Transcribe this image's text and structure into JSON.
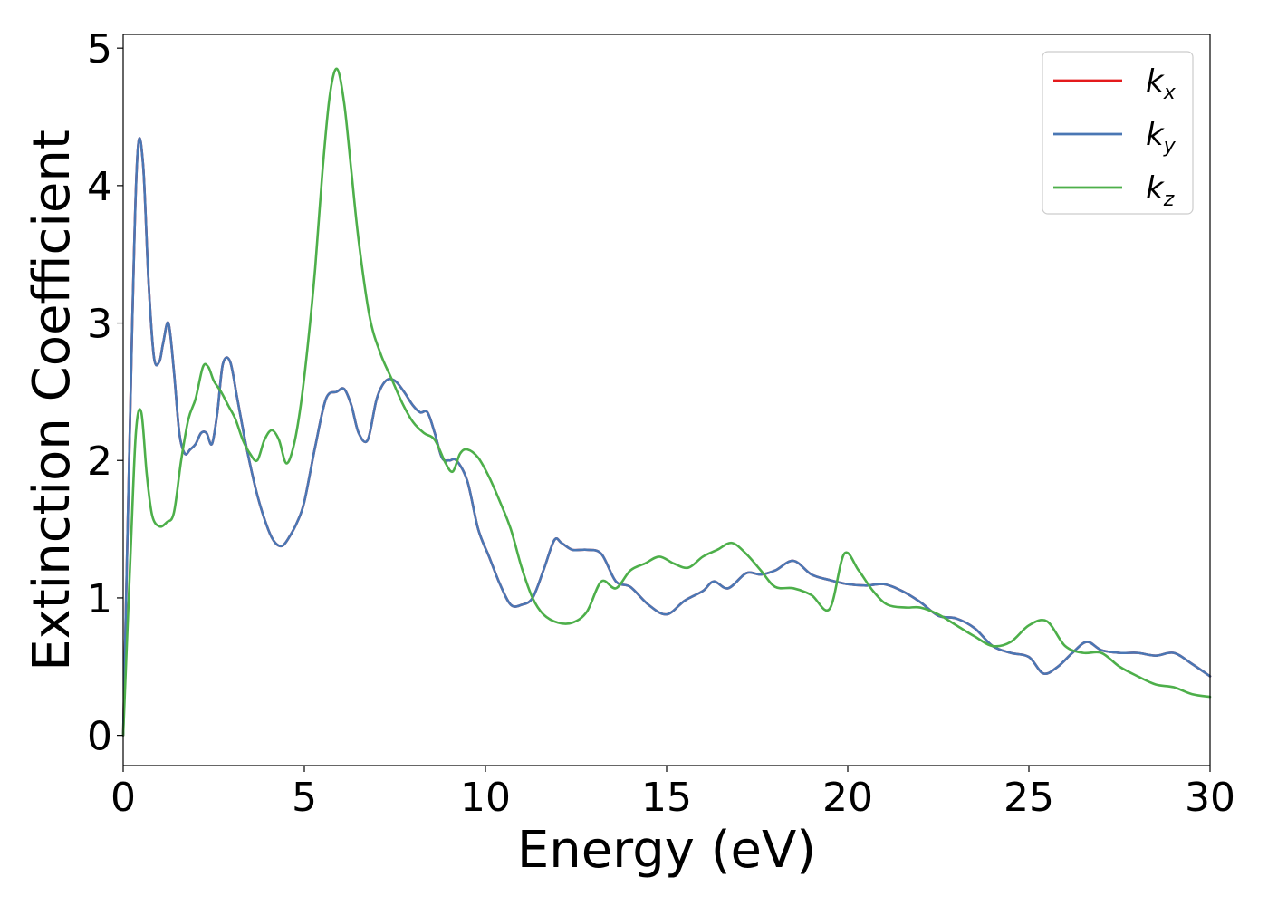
{
  "chart_data": {
    "type": "line",
    "xlabel": "Energy (eV)",
    "ylabel": "Extinction Coefficient",
    "xlim": [
      0,
      30
    ],
    "ylim": [
      -0.22,
      5.1
    ],
    "x_ticks": [
      "0",
      "5",
      "10",
      "15",
      "20",
      "25",
      "30"
    ],
    "y_ticks": [
      "0",
      "1",
      "2",
      "3",
      "4",
      "5"
    ],
    "legend_position": "top-right",
    "grid": false,
    "series": [
      {
        "name": "k",
        "subscript": "x",
        "color": "#e41a1c",
        "x": [
          0,
          0.25,
          0.4,
          0.55,
          0.7,
          0.85,
          1.0,
          1.1,
          1.25,
          1.4,
          1.55,
          1.7,
          1.85,
          2.0,
          2.15,
          2.3,
          2.45,
          2.6,
          2.75,
          2.95,
          3.15,
          3.4,
          3.7,
          4.0,
          4.2,
          4.4,
          4.6,
          4.8,
          5.0,
          5.3,
          5.6,
          5.9,
          6.1,
          6.3,
          6.5,
          6.75,
          7.0,
          7.25,
          7.5,
          7.75,
          8.0,
          8.2,
          8.4,
          8.6,
          8.8,
          9.0,
          9.2,
          9.5,
          9.8,
          10.1,
          10.4,
          10.7,
          11.0,
          11.3,
          11.6,
          11.9,
          12.1,
          12.4,
          12.8,
          13.2,
          13.6,
          14.0,
          14.5,
          15.0,
          15.5,
          16.0,
          16.3,
          16.7,
          17.2,
          17.6,
          18.0,
          18.5,
          19.0,
          19.5,
          20.0,
          20.5,
          21.0,
          21.5,
          22.0,
          22.5,
          23.0,
          23.5,
          24.0,
          24.5,
          25.0,
          25.4,
          25.8,
          26.2,
          26.6,
          27.0,
          27.5,
          28.0,
          28.5,
          29.0,
          29.5,
          30.0
        ],
        "values": [
          0,
          3.0,
          4.25,
          4.15,
          3.3,
          2.75,
          2.72,
          2.85,
          3.0,
          2.65,
          2.2,
          2.05,
          2.08,
          2.12,
          2.2,
          2.2,
          2.12,
          2.35,
          2.7,
          2.72,
          2.45,
          2.1,
          1.75,
          1.5,
          1.4,
          1.38,
          1.45,
          1.55,
          1.7,
          2.1,
          2.45,
          2.5,
          2.52,
          2.4,
          2.2,
          2.15,
          2.45,
          2.58,
          2.58,
          2.5,
          2.4,
          2.35,
          2.35,
          2.2,
          2.02,
          2.0,
          2.0,
          1.85,
          1.5,
          1.3,
          1.1,
          0.95,
          0.95,
          1.0,
          1.2,
          1.42,
          1.4,
          1.35,
          1.35,
          1.32,
          1.12,
          1.08,
          0.95,
          0.88,
          0.98,
          1.05,
          1.12,
          1.07,
          1.18,
          1.17,
          1.2,
          1.27,
          1.17,
          1.13,
          1.1,
          1.09,
          1.1,
          1.05,
          0.97,
          0.87,
          0.85,
          0.78,
          0.65,
          0.6,
          0.57,
          0.45,
          0.5,
          0.6,
          0.68,
          0.62,
          0.6,
          0.6,
          0.58,
          0.6,
          0.52,
          0.43
        ]
      },
      {
        "name": "k",
        "subscript": "y",
        "color": "#4a77b4",
        "x": [
          0,
          0.25,
          0.4,
          0.55,
          0.7,
          0.85,
          1.0,
          1.1,
          1.25,
          1.4,
          1.55,
          1.7,
          1.85,
          2.0,
          2.15,
          2.3,
          2.45,
          2.6,
          2.75,
          2.95,
          3.15,
          3.4,
          3.7,
          4.0,
          4.2,
          4.4,
          4.6,
          4.8,
          5.0,
          5.3,
          5.6,
          5.9,
          6.1,
          6.3,
          6.5,
          6.75,
          7.0,
          7.25,
          7.5,
          7.75,
          8.0,
          8.2,
          8.4,
          8.6,
          8.8,
          9.0,
          9.2,
          9.5,
          9.8,
          10.1,
          10.4,
          10.7,
          11.0,
          11.3,
          11.6,
          11.9,
          12.1,
          12.4,
          12.8,
          13.2,
          13.6,
          14.0,
          14.5,
          15.0,
          15.5,
          16.0,
          16.3,
          16.7,
          17.2,
          17.6,
          18.0,
          18.5,
          19.0,
          19.5,
          20.0,
          20.5,
          21.0,
          21.5,
          22.0,
          22.5,
          23.0,
          23.5,
          24.0,
          24.5,
          25.0,
          25.4,
          25.8,
          26.2,
          26.6,
          27.0,
          27.5,
          28.0,
          28.5,
          29.0,
          29.5,
          30.0
        ],
        "values": [
          0,
          3.0,
          4.25,
          4.15,
          3.3,
          2.75,
          2.72,
          2.85,
          3.0,
          2.65,
          2.2,
          2.05,
          2.08,
          2.12,
          2.2,
          2.2,
          2.12,
          2.35,
          2.7,
          2.72,
          2.45,
          2.1,
          1.75,
          1.5,
          1.4,
          1.38,
          1.45,
          1.55,
          1.7,
          2.1,
          2.45,
          2.5,
          2.52,
          2.4,
          2.2,
          2.15,
          2.45,
          2.58,
          2.58,
          2.5,
          2.4,
          2.35,
          2.35,
          2.2,
          2.02,
          2.0,
          2.0,
          1.85,
          1.5,
          1.3,
          1.1,
          0.95,
          0.95,
          1.0,
          1.2,
          1.42,
          1.4,
          1.35,
          1.35,
          1.32,
          1.12,
          1.08,
          0.95,
          0.88,
          0.98,
          1.05,
          1.12,
          1.07,
          1.18,
          1.17,
          1.2,
          1.27,
          1.17,
          1.13,
          1.1,
          1.09,
          1.1,
          1.05,
          0.97,
          0.87,
          0.85,
          0.78,
          0.65,
          0.6,
          0.57,
          0.45,
          0.5,
          0.6,
          0.68,
          0.62,
          0.6,
          0.6,
          0.58,
          0.6,
          0.52,
          0.43
        ]
      },
      {
        "name": "k",
        "subscript": "z",
        "color": "#4daf4a",
        "x": [
          0,
          0.2,
          0.35,
          0.5,
          0.65,
          0.8,
          1.0,
          1.2,
          1.4,
          1.6,
          1.8,
          2.0,
          2.2,
          2.35,
          2.5,
          2.7,
          2.9,
          3.1,
          3.3,
          3.5,
          3.7,
          3.9,
          4.1,
          4.3,
          4.5,
          4.7,
          4.9,
          5.1,
          5.3,
          5.5,
          5.7,
          5.9,
          6.1,
          6.3,
          6.5,
          6.8,
          7.1,
          7.4,
          7.7,
          8.0,
          8.3,
          8.6,
          8.9,
          9.1,
          9.3,
          9.5,
          9.8,
          10.1,
          10.4,
          10.7,
          11.0,
          11.3,
          11.6,
          12.0,
          12.4,
          12.8,
          13.2,
          13.6,
          14.0,
          14.4,
          14.8,
          15.2,
          15.6,
          16.0,
          16.4,
          16.8,
          17.2,
          17.6,
          18.0,
          18.5,
          19.0,
          19.5,
          19.9,
          20.3,
          20.7,
          21.1,
          21.6,
          22.0,
          22.5,
          23.0,
          23.5,
          24.0,
          24.5,
          25.0,
          25.5,
          26.0,
          26.5,
          27.0,
          27.5,
          28.0,
          28.5,
          29.0,
          29.5,
          30.0
        ],
        "values": [
          0,
          1.3,
          2.2,
          2.35,
          1.9,
          1.6,
          1.52,
          1.55,
          1.62,
          2.0,
          2.3,
          2.45,
          2.68,
          2.68,
          2.58,
          2.5,
          2.4,
          2.3,
          2.15,
          2.05,
          2.0,
          2.15,
          2.22,
          2.15,
          1.98,
          2.1,
          2.4,
          2.85,
          3.4,
          4.1,
          4.65,
          4.85,
          4.6,
          4.1,
          3.6,
          3.05,
          2.78,
          2.6,
          2.42,
          2.28,
          2.2,
          2.15,
          1.98,
          1.92,
          2.05,
          2.08,
          2.02,
          1.88,
          1.7,
          1.5,
          1.22,
          1.0,
          0.88,
          0.82,
          0.82,
          0.9,
          1.12,
          1.07,
          1.2,
          1.25,
          1.3,
          1.25,
          1.22,
          1.3,
          1.35,
          1.4,
          1.32,
          1.2,
          1.08,
          1.07,
          1.02,
          0.92,
          1.32,
          1.2,
          1.05,
          0.95,
          0.93,
          0.93,
          0.88,
          0.8,
          0.72,
          0.65,
          0.68,
          0.8,
          0.83,
          0.65,
          0.6,
          0.6,
          0.5,
          0.43,
          0.37,
          0.35,
          0.3,
          0.28
        ]
      }
    ]
  }
}
